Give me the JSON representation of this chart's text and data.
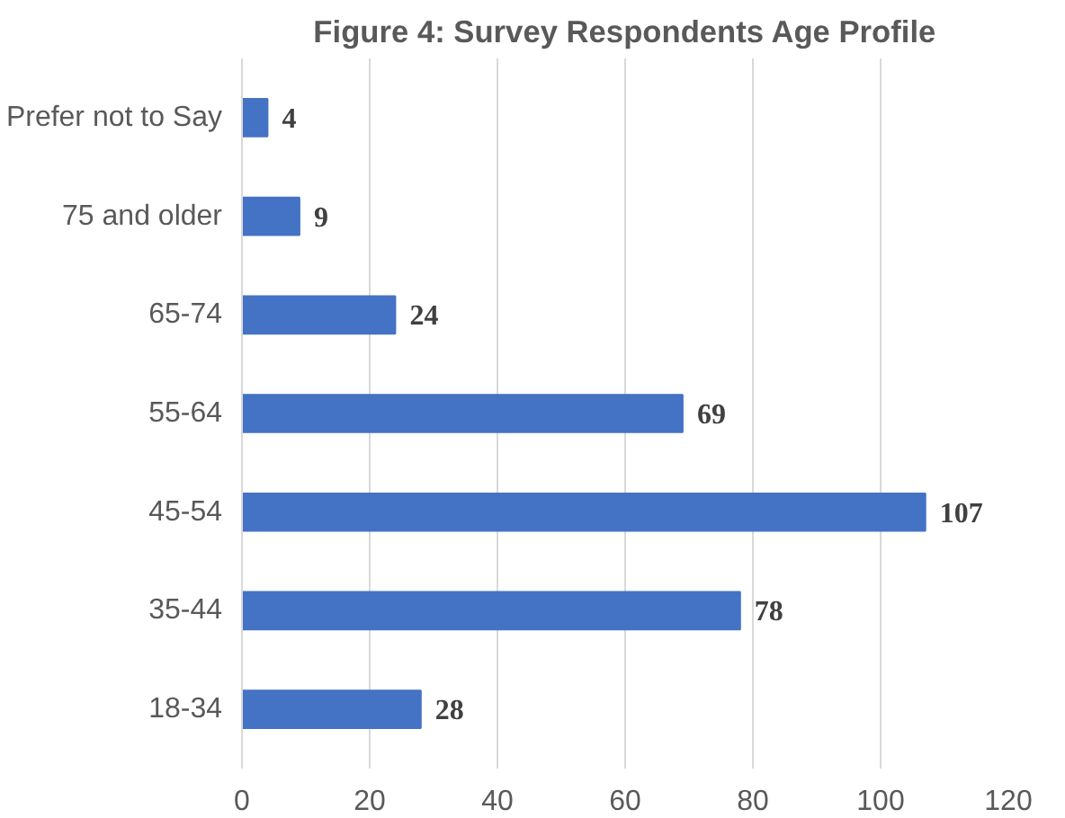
{
  "chart_data": {
    "type": "bar",
    "orientation": "horizontal",
    "title": "Figure 4: Survey Respondents Age Profile",
    "categories": [
      "Prefer not to Say",
      "75 and older",
      "65-74",
      "55-64",
      "45-54",
      "35-44",
      "18-34"
    ],
    "values": [
      4,
      9,
      24,
      69,
      107,
      78,
      28
    ],
    "color": "#4472c4",
    "xlim": [
      0,
      120
    ],
    "xticks": [
      0,
      20,
      40,
      60,
      80,
      100,
      120
    ],
    "grid": "x",
    "data_labels": true
  }
}
